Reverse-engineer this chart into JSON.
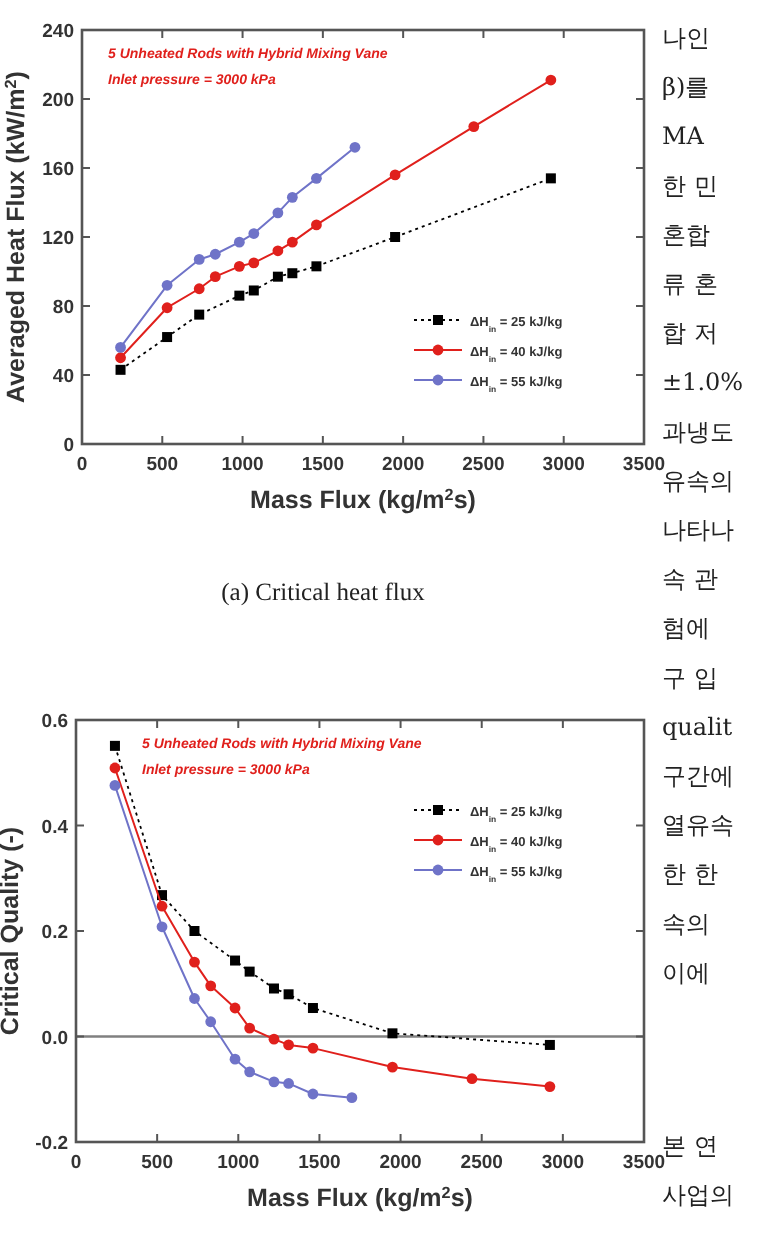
{
  "chart_data": [
    {
      "type": "line",
      "xlabel": "Mass Flux (kg/m$^{2}$s)",
      "ylabel": "Averaged  Heat  Flux (kW/m$^{2}$)",
      "xlim": [
        0,
        3500
      ],
      "xticks": [
        0,
        500,
        1000,
        1500,
        2000,
        2500,
        3000,
        3500
      ],
      "ylim": [
        0,
        240
      ],
      "yticks": [
        0,
        40,
        80,
        120,
        160,
        200,
        240
      ],
      "grid": false,
      "legend": "bottom right",
      "annotations": [
        "5 Unheated Rods with Hybrid Mixing Vane",
        "Inlet pressure = 3000 kPa",
        "(a) Critical heat flux"
      ],
      "series": [
        {
          "name": "ΔH$_{in}$ = 25 kJ/kg",
          "color": "#000000",
          "marker": "square",
          "line_style": "dotted",
          "x": [
            240,
            530,
            730,
            980,
            1070,
            1220,
            1310,
            1460,
            1950,
            2920
          ],
          "values": [
            43,
            62,
            75,
            86,
            89,
            97,
            99,
            103,
            120,
            154
          ]
        },
        {
          "name": "ΔH$_{in}$ = 40 kJ/kg",
          "color": "#e0201c",
          "marker": "circle",
          "line_style": "solid",
          "x": [
            240,
            530,
            730,
            830,
            980,
            1070,
            1220,
            1310,
            1460,
            1950,
            2440,
            2920
          ],
          "values": [
            50,
            79,
            90,
            97,
            103,
            105,
            112,
            117,
            127,
            156,
            184,
            211
          ]
        },
        {
          "name": "ΔH$_{in}$ = 55 kJ/kg",
          "color": "#6f73c8",
          "marker": "circle",
          "line_style": "solid",
          "x": [
            240,
            530,
            730,
            830,
            980,
            1070,
            1220,
            1310,
            1460,
            1700
          ],
          "values": [
            56,
            92,
            107,
            110,
            117,
            122,
            134,
            143,
            154,
            172
          ]
        }
      ]
    },
    {
      "type": "line",
      "xlabel": "Mass Flux (kg/m$^{2}$s)",
      "ylabel": "Critical Quality (-)",
      "xlim": [
        0,
        3500
      ],
      "xticks": [
        0,
        500,
        1000,
        1500,
        2000,
        2500,
        3000,
        3500
      ],
      "ylim": [
        -0.2,
        0.6
      ],
      "yticks": [
        {
          "value": -0.2,
          "label": "-0.2"
        },
        {
          "value": 0,
          "label": "0.0"
        },
        0.2,
        0.4,
        0.6
      ],
      "grid": false,
      "legend": "top right",
      "annotations": [
        "5 Unheated Rods with Hybrid Mixing Vane",
        "Inlet pressure = 3000 kPa"
      ],
      "ref_lines": [
        {
          "axis": "y",
          "value": 0,
          "color": "#808080"
        }
      ],
      "series": [
        {
          "name": "ΔH$_{in}$ = 25 kJ/kg",
          "color": "#000000",
          "marker": "square",
          "line_style": "dotted",
          "x": [
            240,
            530,
            730,
            980,
            1070,
            1220,
            1310,
            1460,
            1950,
            2920
          ],
          "values": [
            0.551,
            0.268,
            0.2,
            0.144,
            0.123,
            0.091,
            0.08,
            0.054,
            0.006,
            -0.016
          ]
        },
        {
          "name": "ΔH$_{in}$ = 40 kJ/kg",
          "color": "#e0201c",
          "marker": "circle",
          "line_style": "solid",
          "x": [
            240,
            530,
            730,
            830,
            980,
            1070,
            1220,
            1310,
            1460,
            1950,
            2440,
            2920
          ],
          "values": [
            0.509,
            0.247,
            0.141,
            0.096,
            0.054,
            0.016,
            -0.005,
            -0.016,
            -0.022,
            -0.058,
            -0.08,
            -0.095
          ]
        },
        {
          "name": "ΔH$_{in}$ = 55 kJ/kg",
          "color": "#6f73c8",
          "marker": "circle",
          "line_style": "solid",
          "x": [
            240,
            530,
            730,
            830,
            980,
            1070,
            1220,
            1310,
            1460,
            1700
          ],
          "values": [
            0.476,
            0.208,
            0.072,
            0.028,
            -0.043,
            -0.067,
            -0.086,
            -0.089,
            -0.109,
            -0.116
          ]
        }
      ]
    },
    {
      "type": "other",
      "annotations": [
        "나인",
        "β)를",
        "MA",
        "한 민",
        "혼합",
        "류 혼",
        "합 저",
        "±1.0%",
        "과냉도",
        "유속의",
        "나타나",
        "속 관",
        "험에",
        "구 입",
        "qualit",
        "구간에",
        "열유속",
        "한 한",
        "속의",
        "이에"
      ]
    },
    {
      "type": "other",
      "annotations": [
        "본 연",
        "사업의"
      ]
    }
  ]
}
